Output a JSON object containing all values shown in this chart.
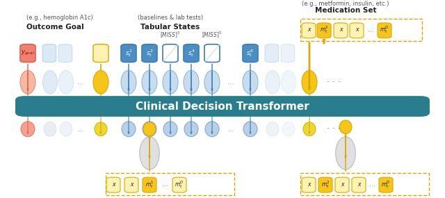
{
  "title": "Clinical Decision Transformer",
  "title_color": "#FFFFFF",
  "title_bg": "#2A7D8C",
  "outcome_goal_label": "Outcome Goal",
  "outcome_goal_sub": "(e.g., hemoglobin A1c)",
  "tabular_states_label": "Tabular States",
  "tabular_states_sub": "(baselines & lab tests)",
  "medication_set_label": "Medication Set",
  "medication_set_sub": "(e.g., metformin, insulin, etc.)",
  "y_goal_color": "#F08070",
  "y_goal_border": "#E06050",
  "state_color": "#4A8EC4",
  "state_border": "#3A7EB4",
  "embed_gray": "#D8D8D8",
  "embed_gray_border": "#AAAAAA",
  "embed_blue_lt": "#C8DCF0",
  "embed_blue_border": "#88BBDD",
  "attn_pink": "#F5A090",
  "attn_blue": "#B8D0E8",
  "attn_blue_border": "#88AACF",
  "token_yellow": "#F5C518",
  "token_yellow_light": "#FEF3B0",
  "token_yellow_border": "#DBA800",
  "token_yellow_fill2": "#F9DD6A",
  "miss_border": "#4A8EC4",
  "attn_yellow": "#EDD830",
  "attn_yellow_border": "#CDB810",
  "bg_color": "#FFFFFF",
  "dot_color": "#999999",
  "label_color": "#222222",
  "sub_color": "#555555"
}
